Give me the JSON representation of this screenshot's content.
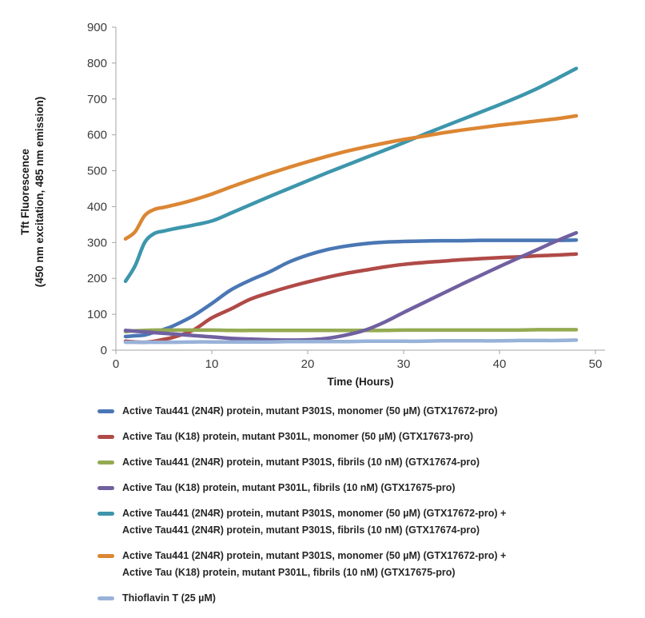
{
  "chart_data": {
    "type": "line",
    "title": "",
    "xlabel": "Time (Hours)",
    "ylabel": "Tft Fluorescence (450 nm excitation, 485 nm emission)",
    "ylabel_line1": "Tft Fluorescence",
    "ylabel_line2": "(450 nm excitation, 485 nm emission)",
    "xlim": [
      0,
      50
    ],
    "ylim": [
      0,
      900
    ],
    "x_ticks": [
      0,
      10,
      20,
      30,
      40,
      50
    ],
    "y_ticks": [
      0,
      100,
      200,
      300,
      400,
      500,
      600,
      700,
      800,
      900
    ],
    "grid": false,
    "legend_position": "bottom",
    "axis_color": "#A6A6A6",
    "tick_label_color": "#3C3C3C",
    "x": [
      1,
      2,
      3,
      4,
      5,
      6,
      8,
      10,
      12,
      14,
      16,
      18,
      20,
      22,
      24,
      26,
      28,
      30,
      32,
      34,
      36,
      38,
      40,
      42,
      44,
      46,
      48
    ],
    "series": [
      {
        "name": "Active Tau441 (2N4R) protein, mutant P301S, monomer (50 µM) (GTX17672-pro)",
        "legend_lines": [
          "Active Tau441 (2N4R) protein, mutant P301S, monomer (50 µM) (GTX17672-pro)"
        ],
        "color": "#4A77B4",
        "values": [
          38,
          40,
          42,
          50,
          58,
          68,
          95,
          130,
          168,
          195,
          218,
          245,
          265,
          280,
          290,
          297,
          301,
          303,
          304,
          305,
          305,
          306,
          306,
          306,
          306,
          306,
          307
        ]
      },
      {
        "name": "Active Tau (K18) protein, mutant P301L, monomer (50 µM) (GTX17673-pro)",
        "legend_lines": [
          "Active Tau (K18) protein, mutant P301L, monomer (50 µM) (GTX17673-pro)"
        ],
        "color": "#B04A47",
        "values": [
          25,
          23,
          22,
          25,
          30,
          36,
          55,
          90,
          115,
          142,
          160,
          176,
          190,
          203,
          214,
          223,
          232,
          239,
          244,
          248,
          252,
          255,
          258,
          260,
          263,
          265,
          268
        ]
      },
      {
        "name": "Active Tau441 (2N4R) protein, mutant P301S, fibrils (10 nM) (GTX17674-pro)",
        "legend_lines": [
          "Active Tau441 (2N4R) protein, mutant P301S, fibrils (10 nM) (GTX17674-pro)"
        ],
        "color": "#94AA52",
        "values": [
          52,
          54,
          55,
          56,
          56,
          56,
          56,
          56,
          55,
          55,
          55,
          55,
          55,
          55,
          55,
          55,
          55,
          56,
          56,
          56,
          56,
          56,
          56,
          56,
          57,
          57,
          57
        ]
      },
      {
        "name": "Active Tau (K18) protein, mutant P301L, fibrils (10 nM) (GTX17675-pro)",
        "legend_lines": [
          "Active Tau (K18) protein, mutant P301L, fibrils (10 nM) (GTX17675-pro)"
        ],
        "color": "#7060A0",
        "values": [
          55,
          53,
          51,
          49,
          47,
          45,
          41,
          37,
          33,
          31,
          29,
          28,
          29,
          33,
          42,
          56,
          78,
          105,
          131,
          157,
          183,
          208,
          233,
          257,
          281,
          305,
          327
        ]
      },
      {
        "name": "Active Tau441 (2N4R) protein, mutant P301S, monomer (50 µM) (GTX17672-pro) + Active Tau441 (2N4R) protein, mutant P301S, fibrils (10 nM) (GTX17674-pro)",
        "legend_lines": [
          "Active Tau441 (2N4R) protein, mutant P301S, monomer (50 µM) (GTX17672-pro) +",
          "Active Tau441 (2N4R) protein, mutant P301S, fibrils (10 nM) (GTX17674-pro)"
        ],
        "color": "#3D96AC",
        "values": [
          192,
          235,
          300,
          325,
          332,
          338,
          348,
          360,
          382,
          405,
          428,
          450,
          472,
          494,
          515,
          536,
          557,
          578,
          600,
          621,
          642,
          663,
          684,
          706,
          730,
          757,
          785
        ]
      },
      {
        "name": "Active Tau441 (2N4R) protein, mutant P301S, monomer (50 µM) (GTX17672-pro) + Active Tau (K18) protein, mutant P301L, fibrils (10 nM) (GTX17675-pro)",
        "legend_lines": [
          "Active Tau441 (2N4R) protein, mutant P301S, monomer (50 µM) (GTX17672-pro) +",
          "Active Tau (K18) protein, mutant P301L, fibrils (10 nM) (GTX17675-pro)"
        ],
        "color": "#DC8633",
        "values": [
          310,
          330,
          375,
          392,
          398,
          404,
          418,
          435,
          455,
          474,
          492,
          509,
          525,
          540,
          554,
          566,
          577,
          587,
          596,
          605,
          613,
          620,
          627,
          633,
          639,
          645,
          653
        ]
      },
      {
        "name": "Thioflavin T (25 µM)",
        "legend_lines": [
          "Thioflavin T (25 µM)"
        ],
        "color": "#98B2D8",
        "values": [
          22,
          22,
          22,
          22,
          22,
          22,
          23,
          23,
          23,
          23,
          23,
          24,
          24,
          24,
          24,
          25,
          25,
          25,
          25,
          26,
          26,
          26,
          26,
          27,
          27,
          27,
          28
        ]
      }
    ]
  }
}
